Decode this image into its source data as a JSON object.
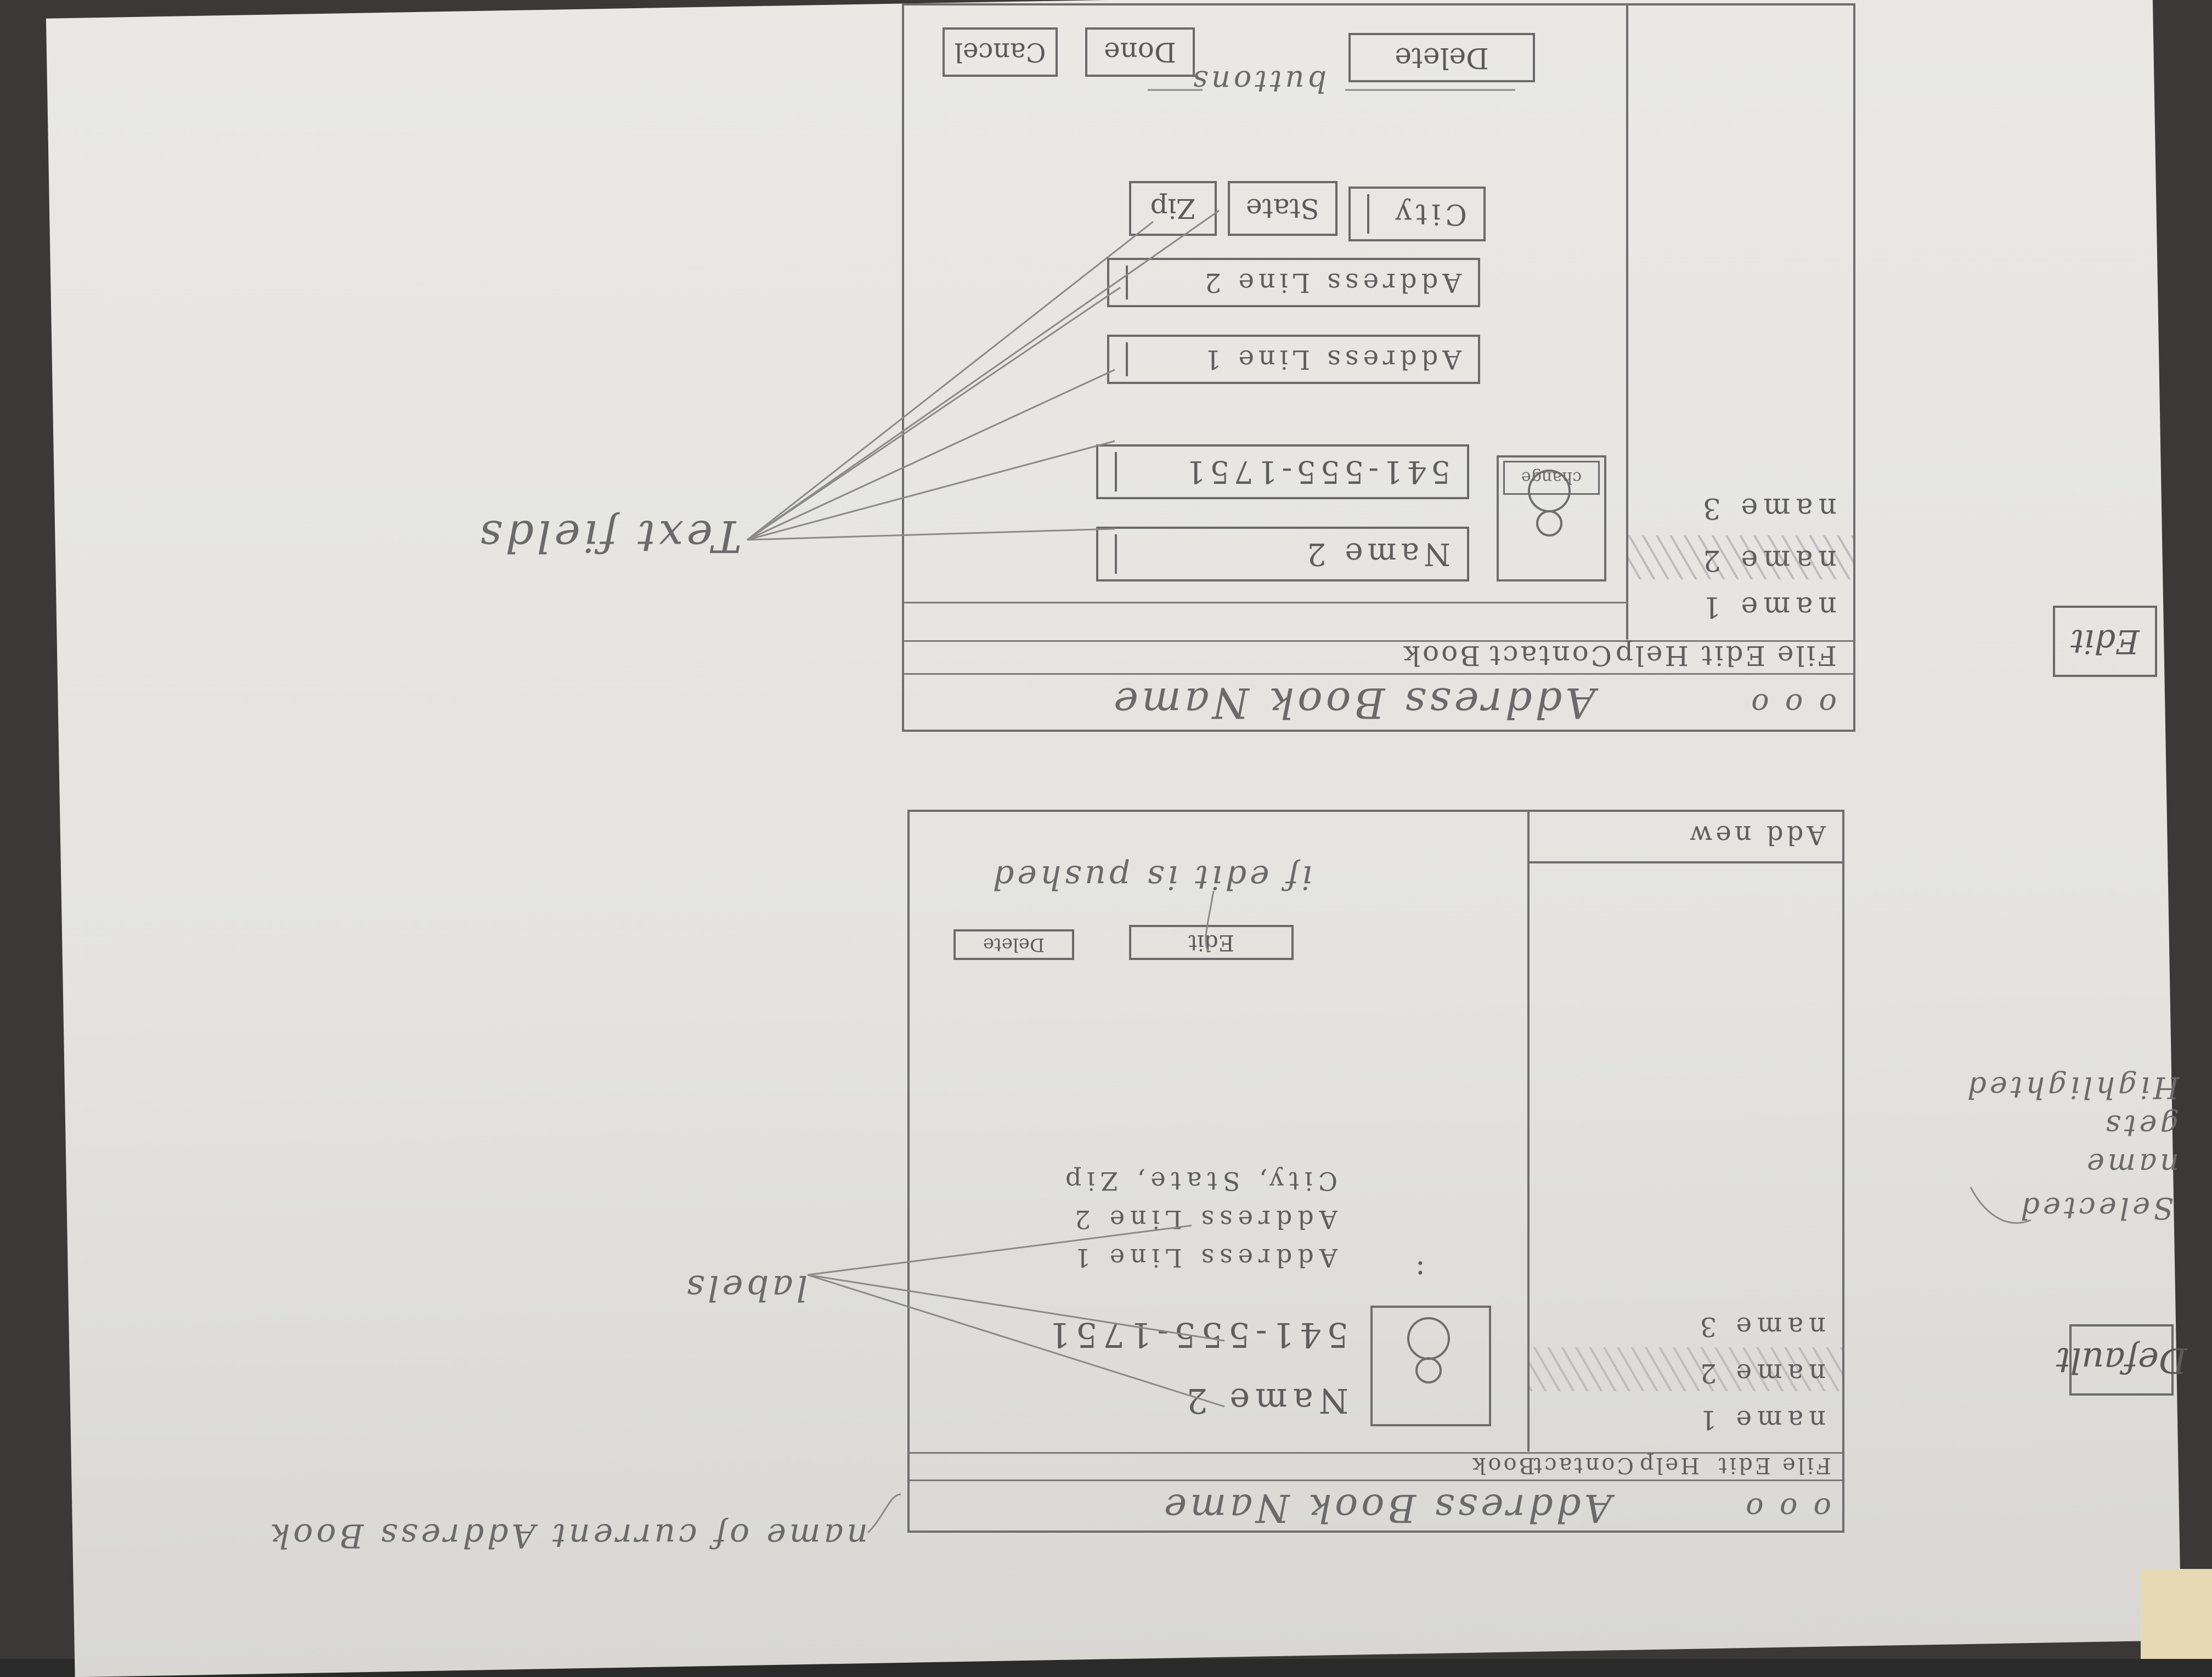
{
  "annotations": {
    "name_of_book": "name of current Address Book",
    "if_edit_pushed": "if edit is pushed",
    "labels": "labels",
    "selected_note": [
      "Selected",
      "name",
      "gets",
      "Highlighted"
    ],
    "text_fields": "Text fields",
    "buttons": "buttons"
  },
  "frames": {
    "default_label": "Default",
    "edit_label": "Edit"
  },
  "default_window": {
    "traffic": "o o o",
    "title": "Address Book Name",
    "menu": [
      "File",
      "Edit",
      "Help",
      "Contact",
      "Book"
    ],
    "list": [
      "name 1",
      "name 2",
      "name 3"
    ],
    "add_new": "Add new",
    "name": "Name 2",
    "phone": "541-555-1751",
    "addr1": "Address Line 1",
    "addr2": "Address Line 2",
    "csz": "City, State, Zip",
    "ellipsis": ":",
    "edit_btn": "Edit",
    "delete_btn": "Delete"
  },
  "edit_window": {
    "traffic": "o o o",
    "title": "Address Book Name",
    "menu": [
      "File",
      "Edit",
      "Help",
      "Contact",
      "Book"
    ],
    "list": [
      "name 1",
      "name 2",
      "name 3"
    ],
    "change": "change",
    "name": "Name 2",
    "phone": "541-555-1751",
    "addr1": "Address Line 1",
    "addr2": "Address Line 2",
    "city": "City",
    "state": "State",
    "zip": "Zip",
    "delete_btn": "Delete",
    "done_btn": "Done",
    "cancel_btn": "Cancel"
  }
}
